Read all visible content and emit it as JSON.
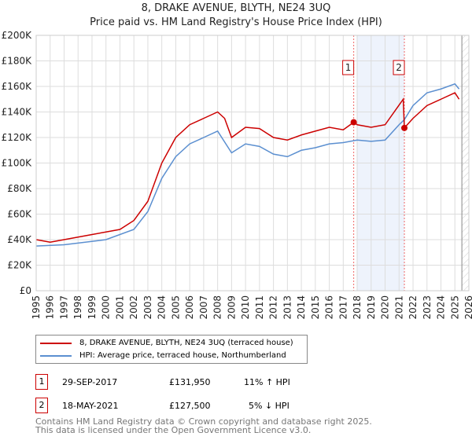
{
  "title": "8, DRAKE AVENUE, BLYTH, NE24 3UQ",
  "subtitle": "Price paid vs. HM Land Registry's House Price Index (HPI)",
  "chart_data": {
    "type": "line",
    "xlim": [
      1995,
      2026
    ],
    "ylim": [
      0,
      200000
    ],
    "x_ticks": [
      "1995",
      "1996",
      "1997",
      "1998",
      "1999",
      "2000",
      "2001",
      "2002",
      "2003",
      "2004",
      "2005",
      "2006",
      "2007",
      "2008",
      "2009",
      "2010",
      "2011",
      "2012",
      "2013",
      "2014",
      "2015",
      "2016",
      "2017",
      "2018",
      "2019",
      "2020",
      "2021",
      "2022",
      "2023",
      "2024",
      "2025",
      "2026"
    ],
    "y_ticks": [
      {
        "v": 0,
        "label": "£0"
      },
      {
        "v": 20000,
        "label": "£20K"
      },
      {
        "v": 40000,
        "label": "£40K"
      },
      {
        "v": 60000,
        "label": "£60K"
      },
      {
        "v": 80000,
        "label": "£80K"
      },
      {
        "v": 100000,
        "label": "£100K"
      },
      {
        "v": 120000,
        "label": "£120K"
      },
      {
        "v": 140000,
        "label": "£140K"
      },
      {
        "v": 160000,
        "label": "£160K"
      },
      {
        "v": 180000,
        "label": "£180K"
      },
      {
        "v": 200000,
        "label": "£200K"
      }
    ],
    "grid": true,
    "series": [
      {
        "name": "8, DRAKE AVENUE, BLYTH, NE24 3UQ (terraced house)",
        "color": "#cc0000",
        "x": [
          1995,
          1996,
          1997,
          1998,
          1999,
          2000,
          2001,
          2002,
          2003,
          2004,
          2005,
          2006,
          2007,
          2008,
          2008.5,
          2009,
          2010,
          2011,
          2012,
          2013,
          2014,
          2015,
          2016,
          2017,
          2017.75,
          2018,
          2019,
          2020,
          2021.3,
          2021.38,
          2022,
          2022.5,
          2023,
          2024,
          2025,
          2025.3
        ],
        "y": [
          40000,
          38000,
          40000,
          42000,
          44000,
          46000,
          48000,
          55000,
          70000,
          100000,
          120000,
          130000,
          135000,
          140000,
          135000,
          120000,
          128000,
          127000,
          120000,
          118000,
          122000,
          125000,
          128000,
          126000,
          131950,
          130000,
          128000,
          130000,
          150000,
          127500,
          135000,
          140000,
          145000,
          150000,
          155000,
          150000
        ]
      },
      {
        "name": "HPI: Average price, terraced house, Northumberland",
        "color": "#5b8fd0",
        "x": [
          1995,
          1997,
          2000,
          2002,
          2003,
          2004,
          2005,
          2006,
          2007,
          2008,
          2009,
          2010,
          2011,
          2012,
          2013,
          2014,
          2015,
          2016,
          2017,
          2018,
          2019,
          2020,
          2021,
          2021.38,
          2022,
          2023,
          2024,
          2025,
          2025.3
        ],
        "y": [
          35000,
          36000,
          40000,
          48000,
          62000,
          88000,
          105000,
          115000,
          120000,
          125000,
          108000,
          115000,
          113000,
          107000,
          105000,
          110000,
          112000,
          115000,
          116000,
          118000,
          117000,
          118000,
          130000,
          134000,
          145000,
          155000,
          158000,
          162000,
          158000
        ]
      }
    ],
    "sales": [
      {
        "id": "1",
        "x": 2017.75,
        "y": 131950
      },
      {
        "id": "2",
        "x": 2021.38,
        "y": 127500
      }
    ],
    "shade": [
      2017.95,
      2021.38
    ],
    "hatch_from": 2025.5
  },
  "legend": [
    "8, DRAKE AVENUE, BLYTH, NE24 3UQ (terraced house)",
    "HPI: Average price, terraced house, Northumberland"
  ],
  "table": [
    {
      "id": "1",
      "date": "29-SEP-2017",
      "price": "£131,950",
      "hpi": "11% ↑ HPI"
    },
    {
      "id": "2",
      "date": "18-MAY-2021",
      "price": "£127,500",
      "hpi": "5% ↓ HPI"
    }
  ],
  "footer": [
    "Contains HM Land Registry data © Crown copyright and database right 2025.",
    "This data is licensed under the Open Government Licence v3.0."
  ]
}
